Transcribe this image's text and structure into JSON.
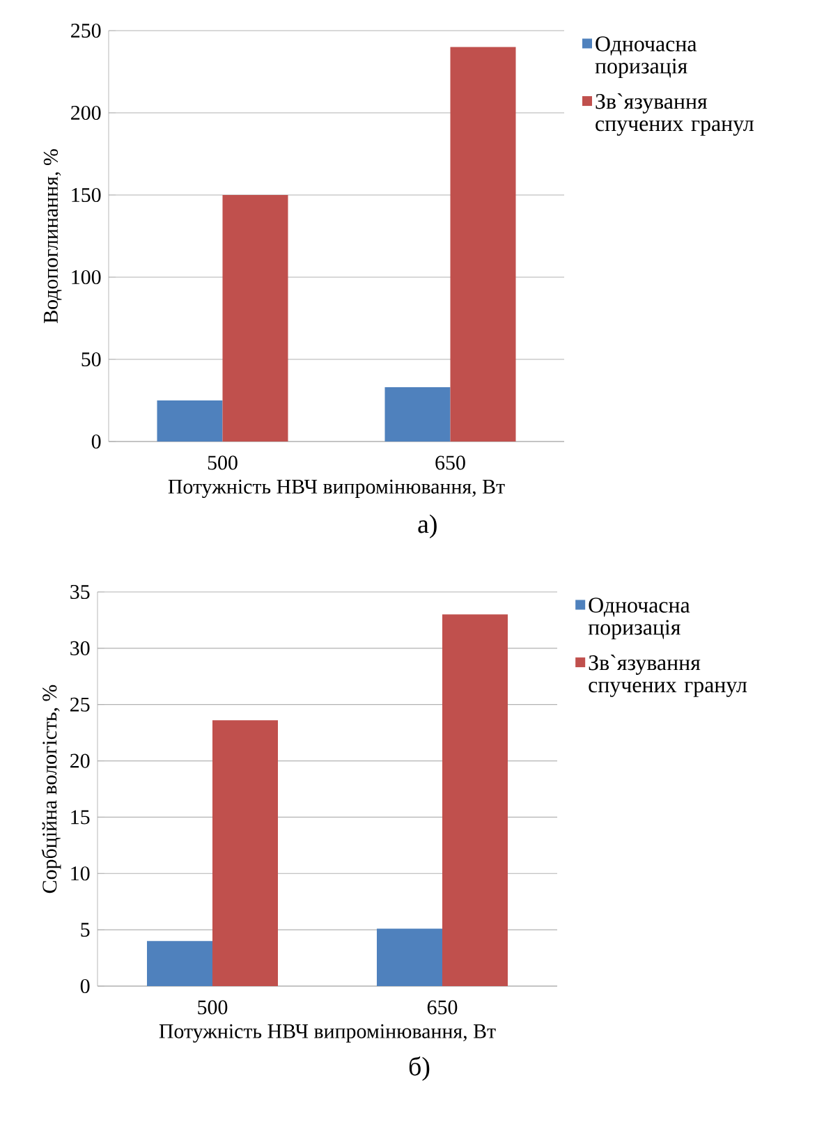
{
  "chart_data": [
    {
      "type": "bar",
      "categories": [
        "500",
        "650"
      ],
      "xlabel": "Потужність НВЧ випромінювання, Вт",
      "ylabel": "Водопоглинання, %",
      "ylim": [
        0,
        250
      ],
      "yticks": [
        0,
        50,
        100,
        150,
        200,
        250
      ],
      "grid": "y",
      "legend": "right",
      "annotations": [
        "а)"
      ],
      "series": [
        {
          "name": "Одночасна поризація",
          "color": "#4f81bd",
          "values": [
            25,
            33
          ]
        },
        {
          "name": "Зв`язування спучених гранул",
          "color": "#c0504d",
          "values": [
            150,
            240
          ]
        }
      ]
    },
    {
      "type": "bar",
      "categories": [
        "500",
        "650"
      ],
      "xlabel": "Потужність НВЧ випромінювання, Вт",
      "ylabel": "Сорбційна вологість, %",
      "ylim": [
        0,
        35
      ],
      "yticks": [
        0,
        5,
        10,
        15,
        20,
        25,
        30,
        35
      ],
      "grid": "y",
      "legend": "right",
      "annotations": [
        "б)"
      ],
      "series": [
        {
          "name": "Одночасна поризація",
          "color": "#4f81bd",
          "values": [
            4,
            5.1
          ]
        },
        {
          "name": "Зв`язування спучених гранул",
          "color": "#c0504d",
          "values": [
            23.6,
            33
          ]
        }
      ]
    }
  ]
}
